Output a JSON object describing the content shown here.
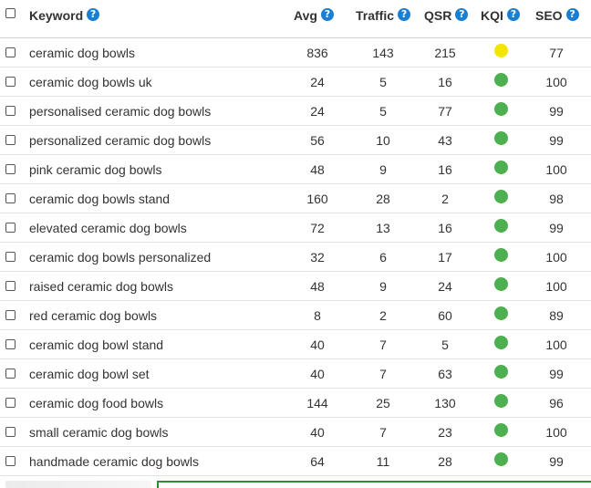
{
  "header": {
    "select_all": false,
    "columns": {
      "keyword": "Keyword",
      "avg": "Avg",
      "traffic": "Traffic",
      "qsr": "QSR",
      "kqi": "KQI",
      "seo": "SEO"
    },
    "help_glyph": "?"
  },
  "colors": {
    "kqi_yellow": "#f2e600",
    "kqi_green": "#4caf50",
    "help_blue": "#1a7fd1",
    "panel_border": "#2e8b2e"
  },
  "rows": [
    {
      "keyword": "ceramic dog bowls",
      "avg": "836",
      "traffic": "143",
      "qsr": "215",
      "kqi": "yellow",
      "seo": "77"
    },
    {
      "keyword": "ceramic dog bowls uk",
      "avg": "24",
      "traffic": "5",
      "qsr": "16",
      "kqi": "green",
      "seo": "100"
    },
    {
      "keyword": "personalised ceramic dog bowls",
      "avg": "24",
      "traffic": "5",
      "qsr": "77",
      "kqi": "green",
      "seo": "99"
    },
    {
      "keyword": "personalized ceramic dog bowls",
      "avg": "56",
      "traffic": "10",
      "qsr": "43",
      "kqi": "green",
      "seo": "99"
    },
    {
      "keyword": "pink ceramic dog bowls",
      "avg": "48",
      "traffic": "9",
      "qsr": "16",
      "kqi": "green",
      "seo": "100"
    },
    {
      "keyword": "ceramic dog bowls stand",
      "avg": "160",
      "traffic": "28",
      "qsr": "2",
      "kqi": "green",
      "seo": "98"
    },
    {
      "keyword": "elevated ceramic dog bowls",
      "avg": "72",
      "traffic": "13",
      "qsr": "16",
      "kqi": "green",
      "seo": "99"
    },
    {
      "keyword": "ceramic dog bowls personalized",
      "avg": "32",
      "traffic": "6",
      "qsr": "17",
      "kqi": "green",
      "seo": "100"
    },
    {
      "keyword": "raised ceramic dog bowls",
      "avg": "48",
      "traffic": "9",
      "qsr": "24",
      "kqi": "green",
      "seo": "100"
    },
    {
      "keyword": "red ceramic dog bowls",
      "avg": "8",
      "traffic": "2",
      "qsr": "60",
      "kqi": "green",
      "seo": "89"
    },
    {
      "keyword": "ceramic dog bowl stand",
      "avg": "40",
      "traffic": "7",
      "qsr": "5",
      "kqi": "green",
      "seo": "100"
    },
    {
      "keyword": "ceramic dog bowl set",
      "avg": "40",
      "traffic": "7",
      "qsr": "63",
      "kqi": "green",
      "seo": "99"
    },
    {
      "keyword": "ceramic dog food bowls",
      "avg": "144",
      "traffic": "25",
      "qsr": "130",
      "kqi": "green",
      "seo": "96"
    },
    {
      "keyword": "small ceramic dog bowls",
      "avg": "40",
      "traffic": "7",
      "qsr": "23",
      "kqi": "green",
      "seo": "100"
    },
    {
      "keyword": "handmade ceramic dog bowls",
      "avg": "64",
      "traffic": "11",
      "qsr": "28",
      "kqi": "green",
      "seo": "99"
    }
  ]
}
